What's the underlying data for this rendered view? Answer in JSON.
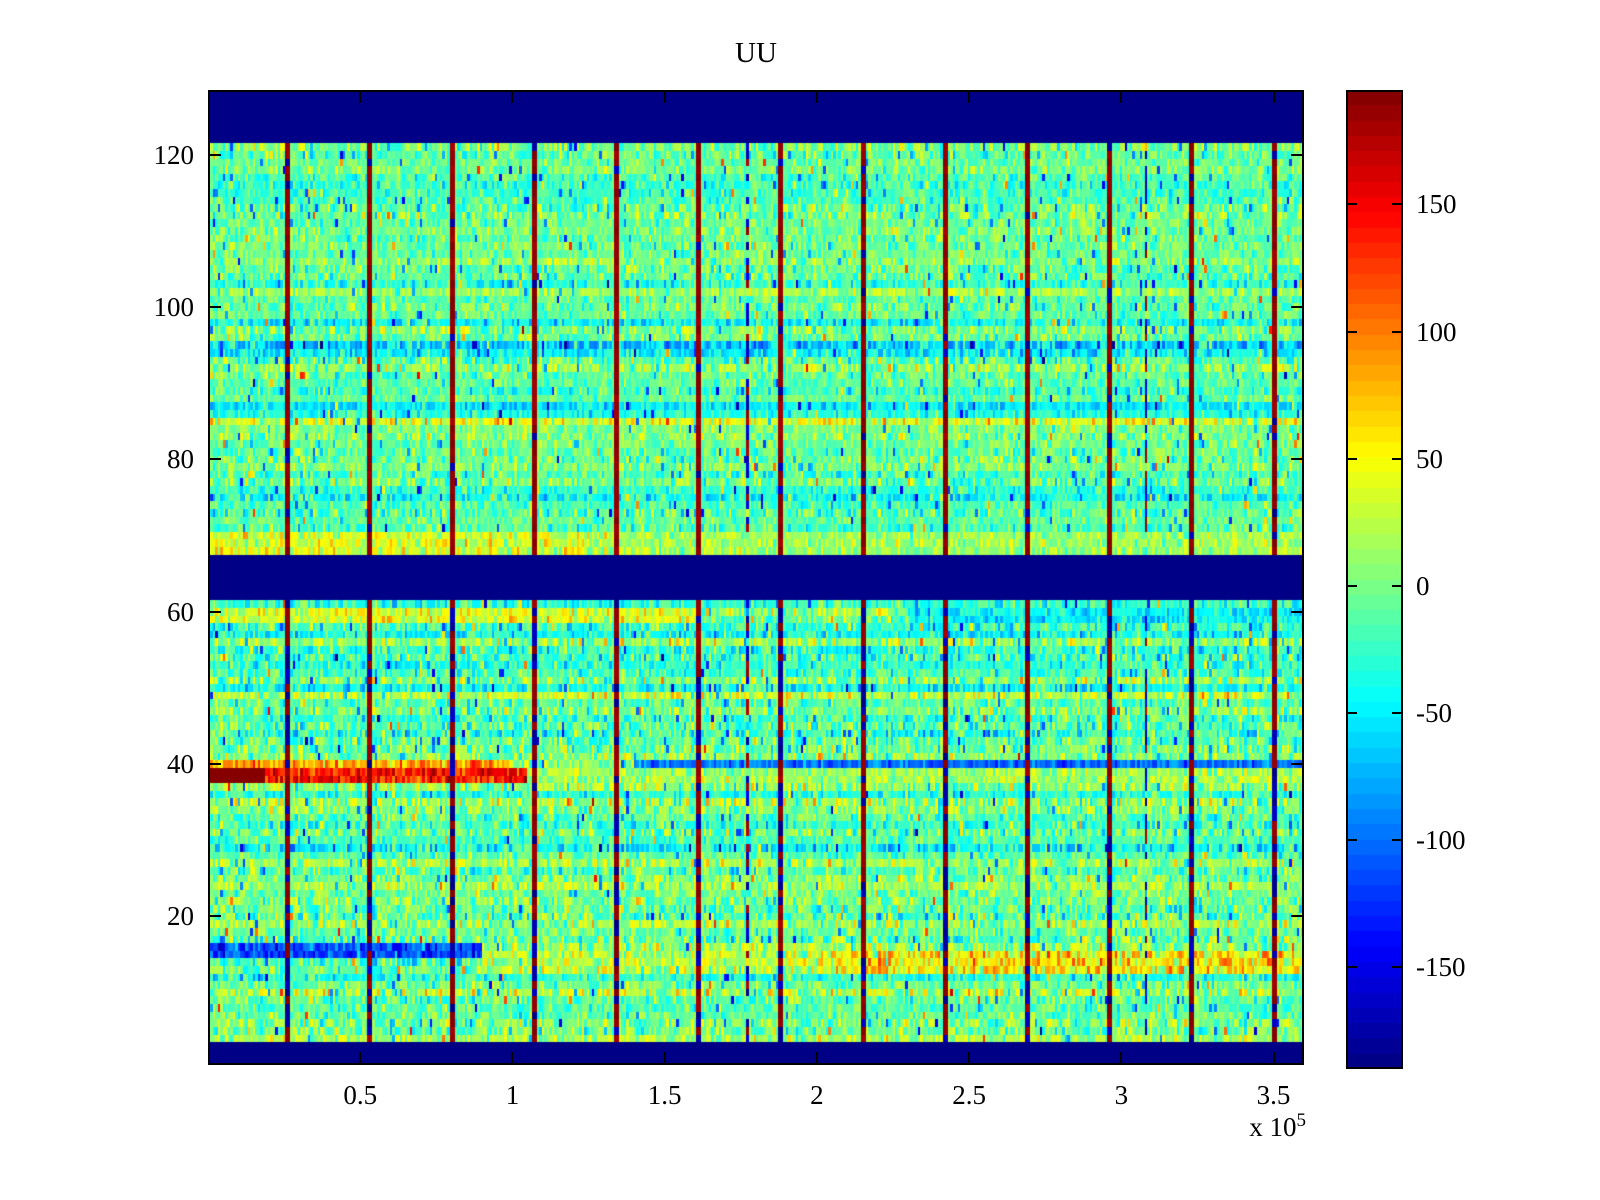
{
  "figure": {
    "title": "UU",
    "background_color": "#ffffff",
    "axis_color": "#000000"
  },
  "labels": {
    "title": "UU",
    "x_multiplier_base": "x 10",
    "x_multiplier_exp": "5"
  },
  "chart_data": {
    "type": "heatmap",
    "title": "UU",
    "colormap": "jet",
    "colormap_levels": 64,
    "value_range": [
      -190,
      195
    ],
    "x_range": [
      0,
      360000
    ],
    "y_range": [
      0.5,
      128.5
    ],
    "x_ticks": [
      50000,
      100000,
      150000,
      200000,
      250000,
      300000,
      350000
    ],
    "x_tick_labels": [
      "0.5",
      "1",
      "1.5",
      "2",
      "2.5",
      "3",
      "3.5"
    ],
    "x_axis_multiplier": "x 10^5",
    "y_ticks": [
      20,
      40,
      60,
      80,
      100,
      120
    ],
    "y_tick_labels": [
      "20",
      "40",
      "60",
      "80",
      "100",
      "120"
    ],
    "colorbar": {
      "position": "right",
      "ticks": [
        150,
        100,
        50,
        0,
        -50,
        -100,
        -150
      ],
      "tick_labels": [
        "150",
        "100",
        "50",
        "0",
        "-50",
        "-100",
        "-150"
      ]
    },
    "grid": false,
    "description": "Noisy jet-colormap field centered near 0 (green) with solid dark-blue horizontal bands, periodic dark-red/blue vertical stripes, a dark-red streak at rows 38-40 on the left, and blue/orange row streaks near rows 14-16 and 59-60.",
    "texture": {
      "seed": 1337,
      "grid_cols": 440,
      "grid_rows": 128,
      "row_base_mean_upper": -7,
      "row_base_sd_upper": 10,
      "row_base_mean_lower": -5,
      "row_base_sd_lower": 14,
      "sigma_upper": 21,
      "sigma_lower": 25,
      "speckle_neg_prob": 0.03,
      "speckle_pos_prob": 0.013,
      "row_tints": {
        "117": -12,
        "110": -14,
        "103": -18,
        "98": -18,
        "95": -34,
        "94": -34,
        "87": -30,
        "86": -32,
        "85": 22,
        "76": -24,
        "75": -28,
        "58": -20,
        "57": -32,
        "55": -14,
        "53": -16,
        "50": -26,
        "46": -20,
        "45": -16,
        "44": -26,
        "43": -18,
        "35": 12,
        "33": -24,
        "29": -28,
        "28": -18,
        "24": 16,
        "23": 14,
        "21": 13,
        "19": 15,
        "17": -14,
        "11": 20,
        "10": 15,
        "9": 13,
        "6": 16,
        "5": 20
      },
      "blue_bands_rows": [
        [
          122,
          128
        ],
        [
          62,
          67
        ],
        [
          1,
          3
        ]
      ],
      "stripes": {
        "main_x": [
          26000,
          53000,
          80000,
          107000,
          134000,
          161000,
          188000,
          215000,
          242000,
          269000,
          296000,
          323000,
          350000
        ],
        "half_width": 700,
        "upper_red_prob": 0.9,
        "lower_red_prob": 0.58,
        "minor_x": [
          99000,
          177000,
          308000
        ],
        "minor_half_width": 400,
        "minor_present_prob": 0.65
      },
      "segments": [
        {
          "rows": [
            38,
            39
          ],
          "x": [
            0,
            19000
          ],
          "v": 195,
          "j": 4
        },
        {
          "rows": [
            38,
            39
          ],
          "x": [
            19000,
            105000
          ],
          "v": 140,
          "j": 22
        },
        {
          "rows": [
            38,
            39
          ],
          "x": [
            105000,
            360000
          ],
          "v": 15,
          "j": 20
        },
        {
          "rows": [
            40,
            40
          ],
          "x": [
            0,
            100000
          ],
          "v": 85,
          "j": 25
        },
        {
          "rows": [
            40,
            40
          ],
          "x": [
            140000,
            360000
          ],
          "v": -100,
          "j": 18
        },
        {
          "rows": [
            13,
            15
          ],
          "x": [
            90000,
            200000
          ],
          "v": 22,
          "j": 28
        },
        {
          "rows": [
            13,
            15
          ],
          "x": [
            200000,
            360000
          ],
          "v": 55,
          "j": 32
        },
        {
          "rows": [
            15,
            16
          ],
          "x": [
            0,
            90000
          ],
          "v": -115,
          "j": 22
        },
        {
          "rows": [
            59,
            60
          ],
          "x": [
            0,
            160000
          ],
          "v": 38,
          "j": 24
        },
        {
          "rows": [
            59,
            60
          ],
          "x": [
            230000,
            360000
          ],
          "v": -48,
          "j": 18
        },
        {
          "rows": [
            68,
            70
          ],
          "x": [
            0,
            125000
          ],
          "v": 35,
          "j": 24
        },
        {
          "rows": [
            68,
            70
          ],
          "x": [
            125000,
            360000
          ],
          "v": 14,
          "j": 20
        }
      ]
    }
  }
}
